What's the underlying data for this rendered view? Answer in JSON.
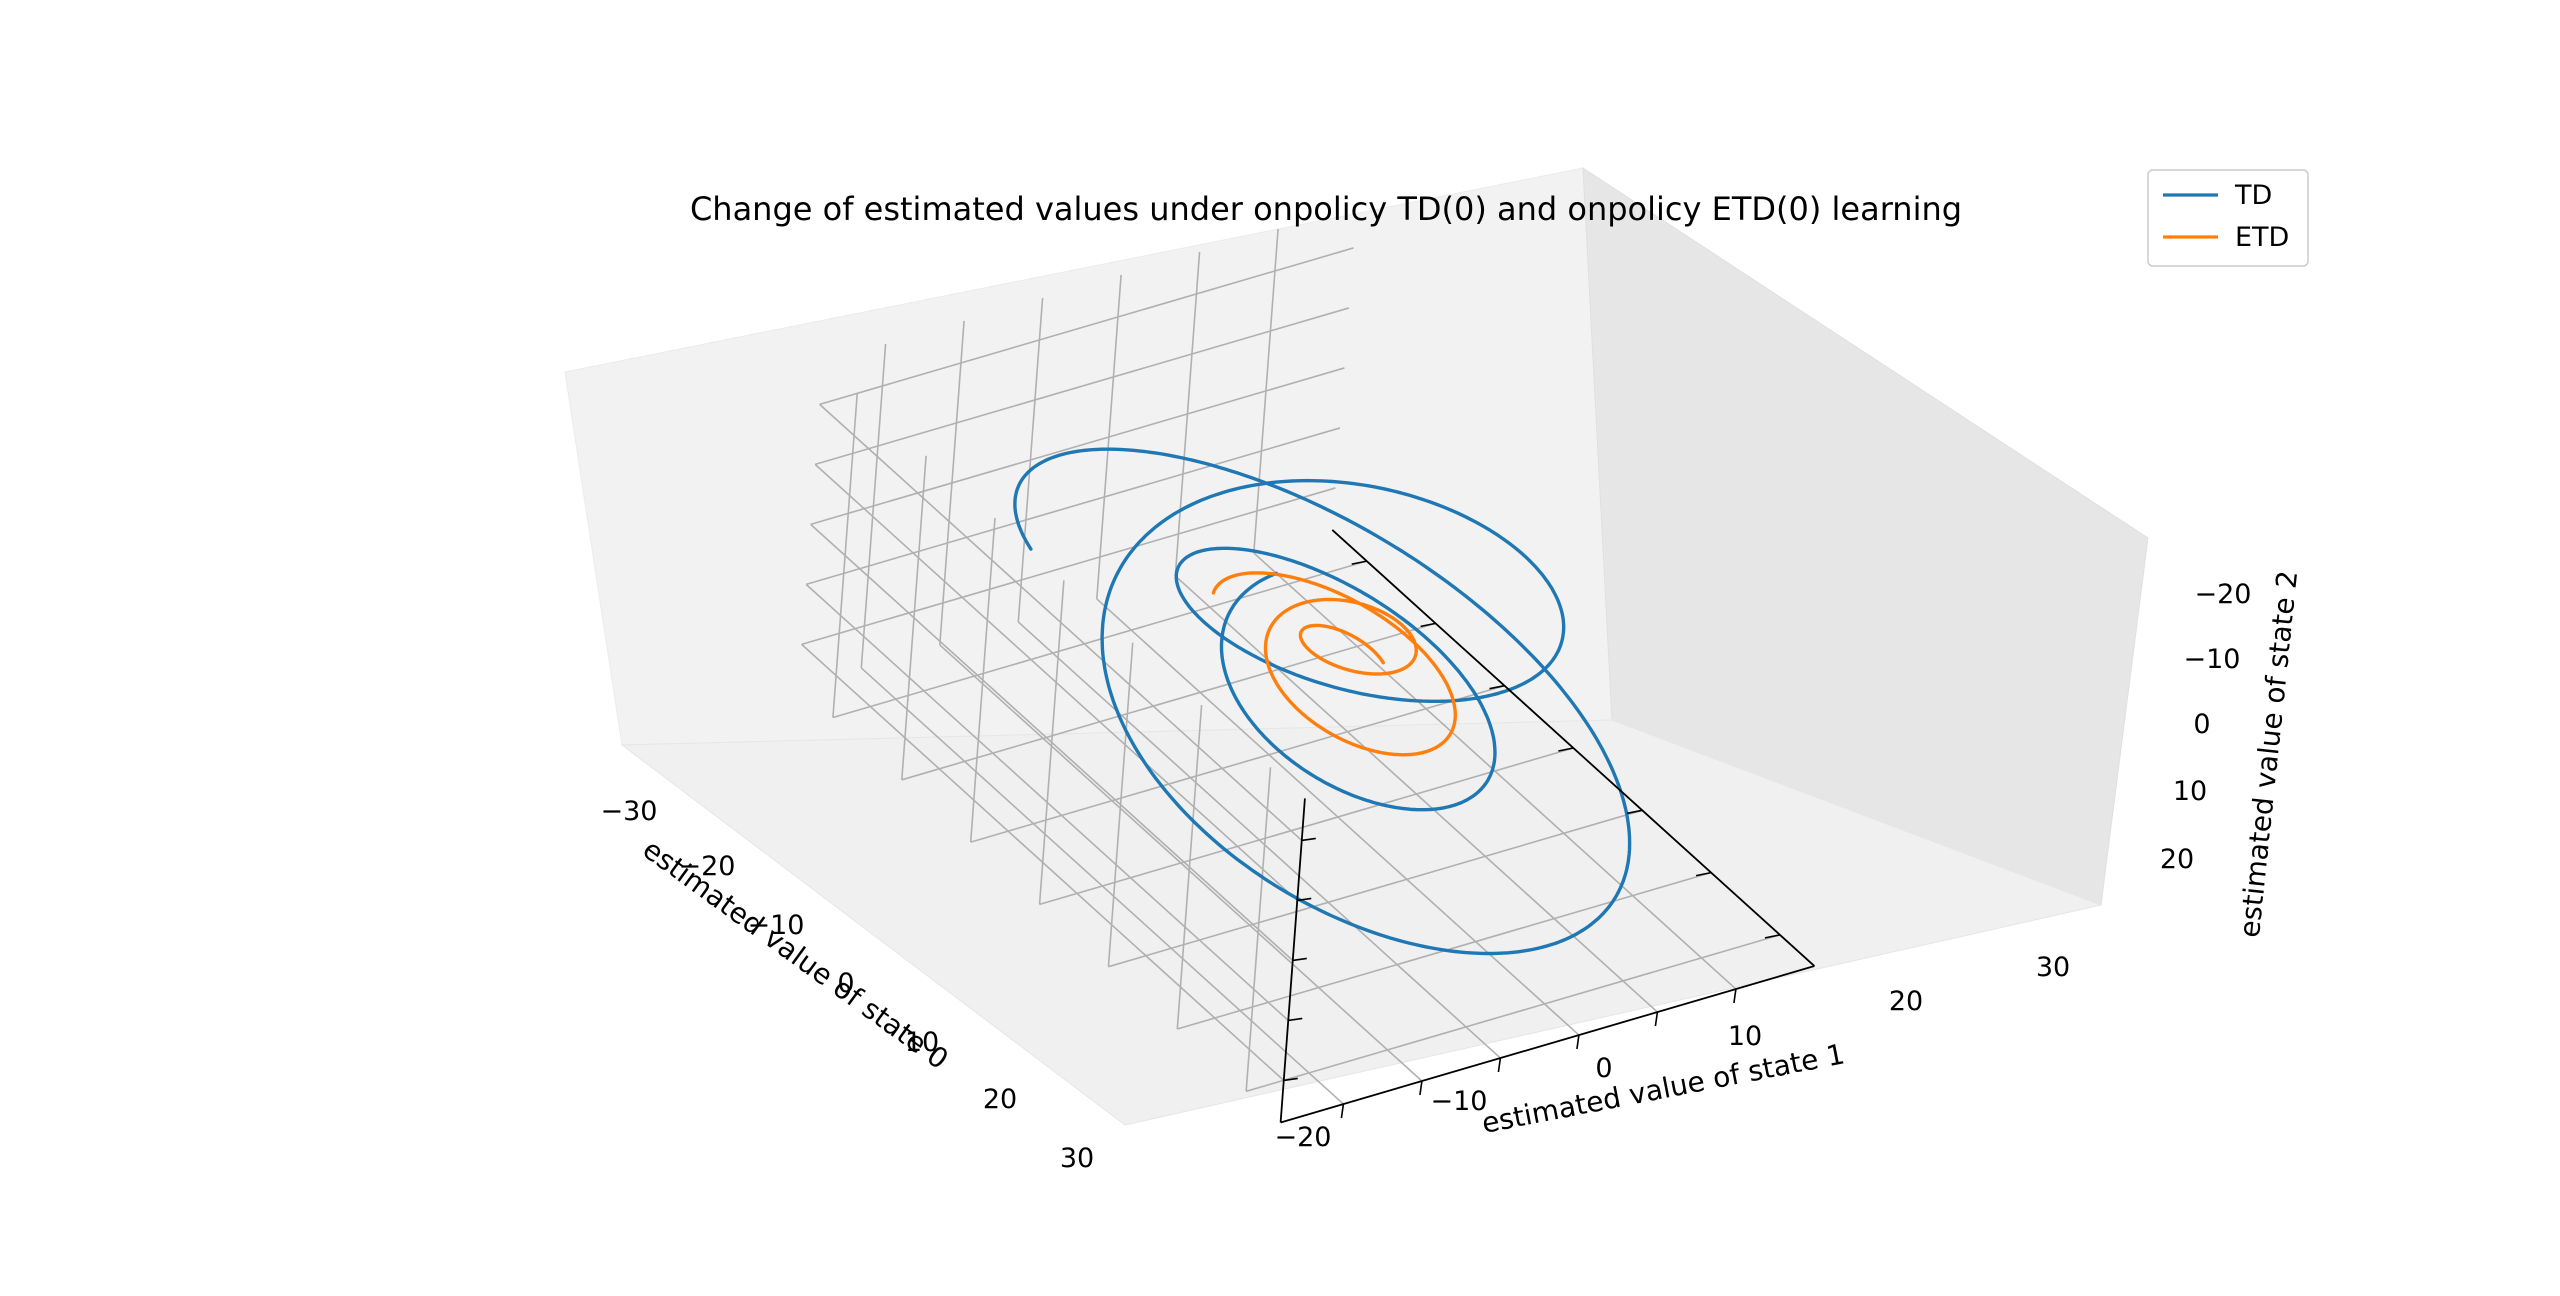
{
  "chart_data": {
    "type": "line",
    "projection": "3d",
    "title": "Change of estimated values under onpolicy TD(0) and onpolicy ETD(0) learning",
    "xlabel": "estimated value of state 0",
    "ylabel": "estimated value of state 1",
    "zlabel": "estimated value of state 2",
    "xlim": [
      -35,
      35
    ],
    "ylim": [
      -30,
      38
    ],
    "zlim": [
      -27,
      27
    ],
    "x_ticks": [
      "−30",
      "−20",
      "−10",
      "0",
      "10",
      "20",
      "30"
    ],
    "y_ticks": [
      "−20",
      "−10",
      "0",
      "10",
      "20",
      "30"
    ],
    "z_ticks": [
      "−20",
      "−10",
      "0",
      "10",
      "20"
    ],
    "grid": true,
    "legend_position": "upper-right",
    "series": [
      {
        "name": "TD",
        "color": "#1f77b4",
        "shape": "inward spiral",
        "start": [
          -1.2,
          35,
          25
        ],
        "end": [
          0,
          0,
          0
        ],
        "amplitude_start": 35,
        "decay_per_turn": 0.72,
        "turns": 3.2
      },
      {
        "name": "ETD",
        "color": "#ff7f0e",
        "shape": "inward spiral",
        "start": [
          -10,
          12,
          7
        ],
        "end": [
          0,
          0,
          0
        ],
        "amplitude_start": 14,
        "decay_per_turn": 0.6,
        "turns": 2.4
      }
    ]
  }
}
